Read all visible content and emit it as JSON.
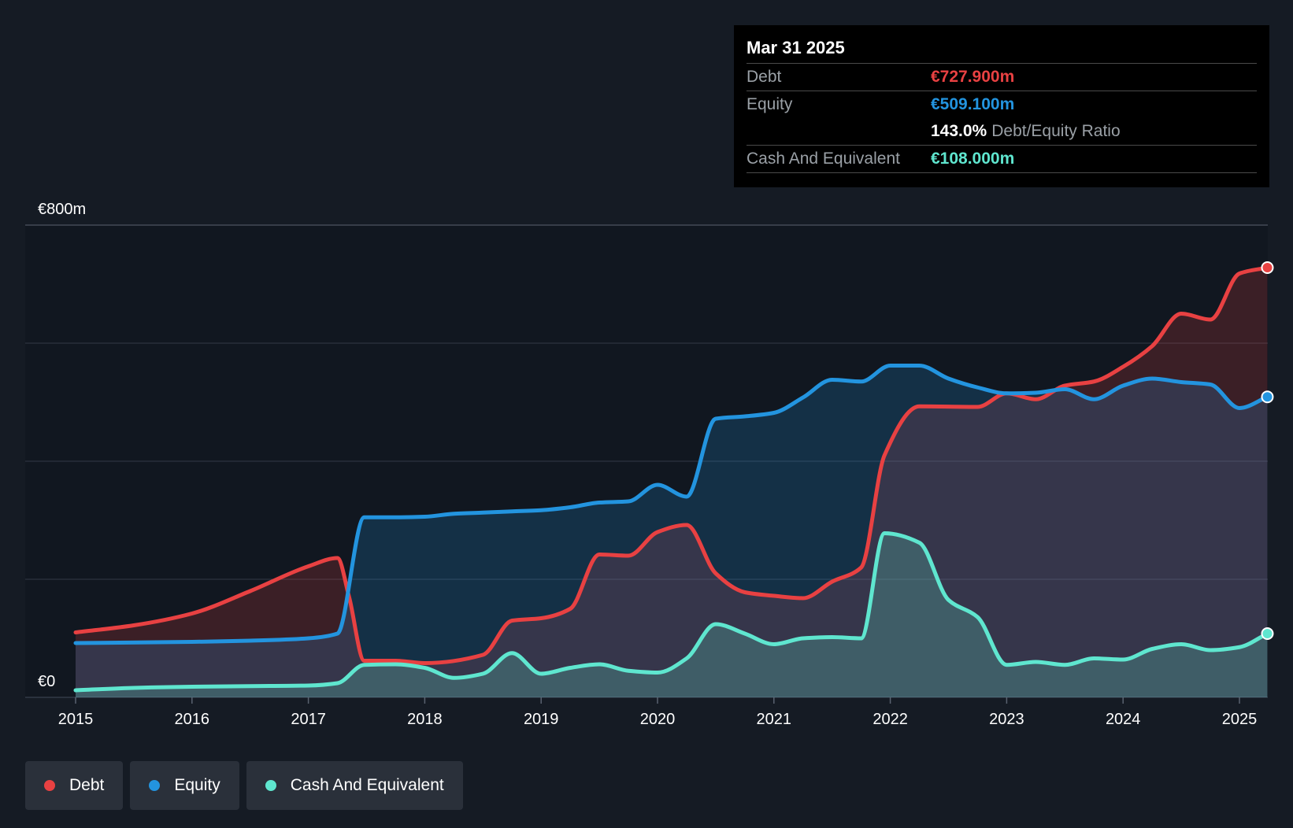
{
  "chart_data": {
    "type": "area",
    "title": "",
    "xlabel": "",
    "ylabel": "",
    "ylim": [
      0,
      800
    ],
    "y_ticks": [
      {
        "value": 800,
        "label": "€800m"
      },
      {
        "value": 0,
        "label": "€0"
      }
    ],
    "x_ticks": [
      "2015",
      "2016",
      "2017",
      "2018",
      "2019",
      "2020",
      "2021",
      "2022",
      "2023",
      "2024",
      "2025"
    ],
    "grid": true,
    "legend_position": "bottom-left",
    "series": [
      {
        "name": "Debt",
        "color": "#e84142",
        "points": [
          [
            2015.0,
            110
          ],
          [
            2015.5,
            122
          ],
          [
            2016.0,
            142
          ],
          [
            2016.5,
            180
          ],
          [
            2017.0,
            222
          ],
          [
            2017.25,
            236
          ],
          [
            2017.35,
            170
          ],
          [
            2017.48,
            62
          ],
          [
            2017.75,
            62
          ],
          [
            2018.0,
            58
          ],
          [
            2018.5,
            72
          ],
          [
            2018.75,
            130
          ],
          [
            2019.0,
            134
          ],
          [
            2019.25,
            150
          ],
          [
            2019.5,
            242
          ],
          [
            2019.75,
            240
          ],
          [
            2020.0,
            280
          ],
          [
            2020.25,
            292
          ],
          [
            2020.5,
            210
          ],
          [
            2020.75,
            178
          ],
          [
            2021.0,
            172
          ],
          [
            2021.25,
            168
          ],
          [
            2021.5,
            196
          ],
          [
            2021.75,
            220
          ],
          [
            2021.95,
            410
          ],
          [
            2022.25,
            493
          ],
          [
            2022.75,
            492
          ],
          [
            2023.0,
            515
          ],
          [
            2023.25,
            505
          ],
          [
            2023.5,
            528
          ],
          [
            2023.75,
            535
          ],
          [
            2024.0,
            560
          ],
          [
            2024.25,
            595
          ],
          [
            2024.5,
            650
          ],
          [
            2024.75,
            640
          ],
          [
            2025.0,
            718
          ],
          [
            2025.24,
            728
          ]
        ]
      },
      {
        "name": "Equity",
        "color": "#2394df",
        "points": [
          [
            2015.0,
            92
          ],
          [
            2016.0,
            94
          ],
          [
            2016.5,
            96
          ],
          [
            2017.0,
            100
          ],
          [
            2017.25,
            108
          ],
          [
            2017.48,
            305
          ],
          [
            2017.75,
            305
          ],
          [
            2018.0,
            306
          ],
          [
            2018.25,
            311
          ],
          [
            2018.5,
            313
          ],
          [
            2018.75,
            315
          ],
          [
            2019.0,
            317
          ],
          [
            2019.25,
            322
          ],
          [
            2019.5,
            330
          ],
          [
            2019.75,
            332
          ],
          [
            2020.0,
            360
          ],
          [
            2020.25,
            340
          ],
          [
            2020.5,
            472
          ],
          [
            2020.75,
            476
          ],
          [
            2021.0,
            482
          ],
          [
            2021.25,
            508
          ],
          [
            2021.5,
            538
          ],
          [
            2021.75,
            535
          ],
          [
            2022.0,
            562
          ],
          [
            2022.25,
            562
          ],
          [
            2022.5,
            540
          ],
          [
            2022.75,
            525
          ],
          [
            2023.0,
            515
          ],
          [
            2023.25,
            516
          ],
          [
            2023.5,
            522
          ],
          [
            2023.75,
            505
          ],
          [
            2024.0,
            528
          ],
          [
            2024.25,
            540
          ],
          [
            2024.5,
            534
          ],
          [
            2024.75,
            530
          ],
          [
            2025.0,
            490
          ],
          [
            2025.24,
            509
          ]
        ]
      },
      {
        "name": "Cash And Equivalent",
        "color": "#5fe6cf",
        "points": [
          [
            2015.0,
            12
          ],
          [
            2015.5,
            16
          ],
          [
            2016.0,
            18
          ],
          [
            2016.5,
            19
          ],
          [
            2017.0,
            20
          ],
          [
            2017.25,
            24
          ],
          [
            2017.48,
            55
          ],
          [
            2017.75,
            56
          ],
          [
            2018.0,
            50
          ],
          [
            2018.25,
            33
          ],
          [
            2018.5,
            40
          ],
          [
            2018.75,
            75
          ],
          [
            2019.0,
            40
          ],
          [
            2019.25,
            50
          ],
          [
            2019.5,
            56
          ],
          [
            2019.75,
            45
          ],
          [
            2020.0,
            42
          ],
          [
            2020.25,
            66
          ],
          [
            2020.5,
            124
          ],
          [
            2020.75,
            108
          ],
          [
            2021.0,
            90
          ],
          [
            2021.25,
            100
          ],
          [
            2021.5,
            102
          ],
          [
            2021.75,
            100
          ],
          [
            2021.95,
            278
          ],
          [
            2022.25,
            262
          ],
          [
            2022.5,
            165
          ],
          [
            2022.75,
            136
          ],
          [
            2023.0,
            55
          ],
          [
            2023.25,
            60
          ],
          [
            2023.5,
            55
          ],
          [
            2023.75,
            66
          ],
          [
            2024.0,
            64
          ],
          [
            2024.25,
            82
          ],
          [
            2024.5,
            90
          ],
          [
            2024.75,
            80
          ],
          [
            2025.0,
            85
          ],
          [
            2025.24,
            108
          ]
        ]
      }
    ]
  },
  "tooltip": {
    "date": "Mar 31 2025",
    "debt_label": "Debt",
    "debt_value": "€727.900m",
    "equity_label": "Equity",
    "equity_value": "€509.100m",
    "ratio_value": "143.0%",
    "ratio_label": "Debt/Equity Ratio",
    "cash_label": "Cash And Equivalent",
    "cash_value": "€108.000m"
  },
  "legend": {
    "items": [
      {
        "label": "Debt",
        "color": "#e84142"
      },
      {
        "label": "Equity",
        "color": "#2394df"
      },
      {
        "label": "Cash And Equivalent",
        "color": "#5fe6cf"
      }
    ]
  }
}
